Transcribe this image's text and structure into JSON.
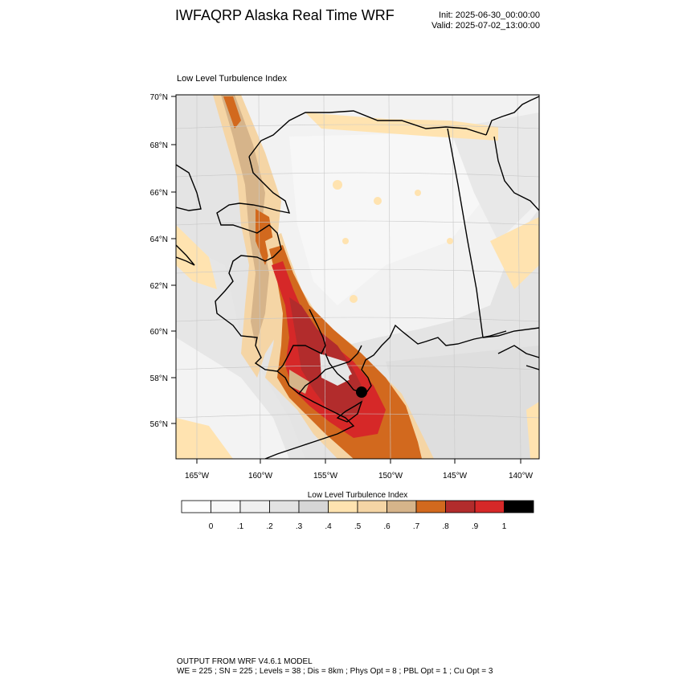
{
  "header": {
    "title": "IWFAQRP Alaska Real Time WRF",
    "init": "Init: 2025-06-30_00:00:00",
    "valid": "Valid: 2025-07-02_13:00:00"
  },
  "map": {
    "field_label": "Low Level Turbulence Index",
    "lat_ticks": [
      "70°N",
      "68°N",
      "66°N",
      "64°N",
      "62°N",
      "60°N",
      "58°N",
      "56°N"
    ],
    "lon_ticks": [
      "165°W",
      "160°W",
      "155°W",
      "150°W",
      "145°W",
      "140°W"
    ]
  },
  "colorbar": {
    "title": "Low Level Turbulence Index",
    "colors": [
      "#ffffff",
      "#f8f8f8",
      "#efefef",
      "#e2e2e2",
      "#d6d6d6",
      "#ffe3b0",
      "#f5d5a5",
      "#d6b48a",
      "#d2691e",
      "#b22c2c",
      "#d62828",
      "#000000"
    ],
    "labels": [
      "0",
      ".1",
      ".2",
      ".3",
      ".4",
      ".5",
      ".6",
      ".7",
      ".8",
      ".9",
      "1"
    ]
  },
  "footer": {
    "line1": "OUTPUT FROM WRF V4.6.1 MODEL",
    "line2": "WE = 225 ; SN = 225 ; Levels = 38 ; Dis = 8km ; Phys Opt = 8 ; PBL Opt = 1 ; Cu Opt = 3"
  }
}
